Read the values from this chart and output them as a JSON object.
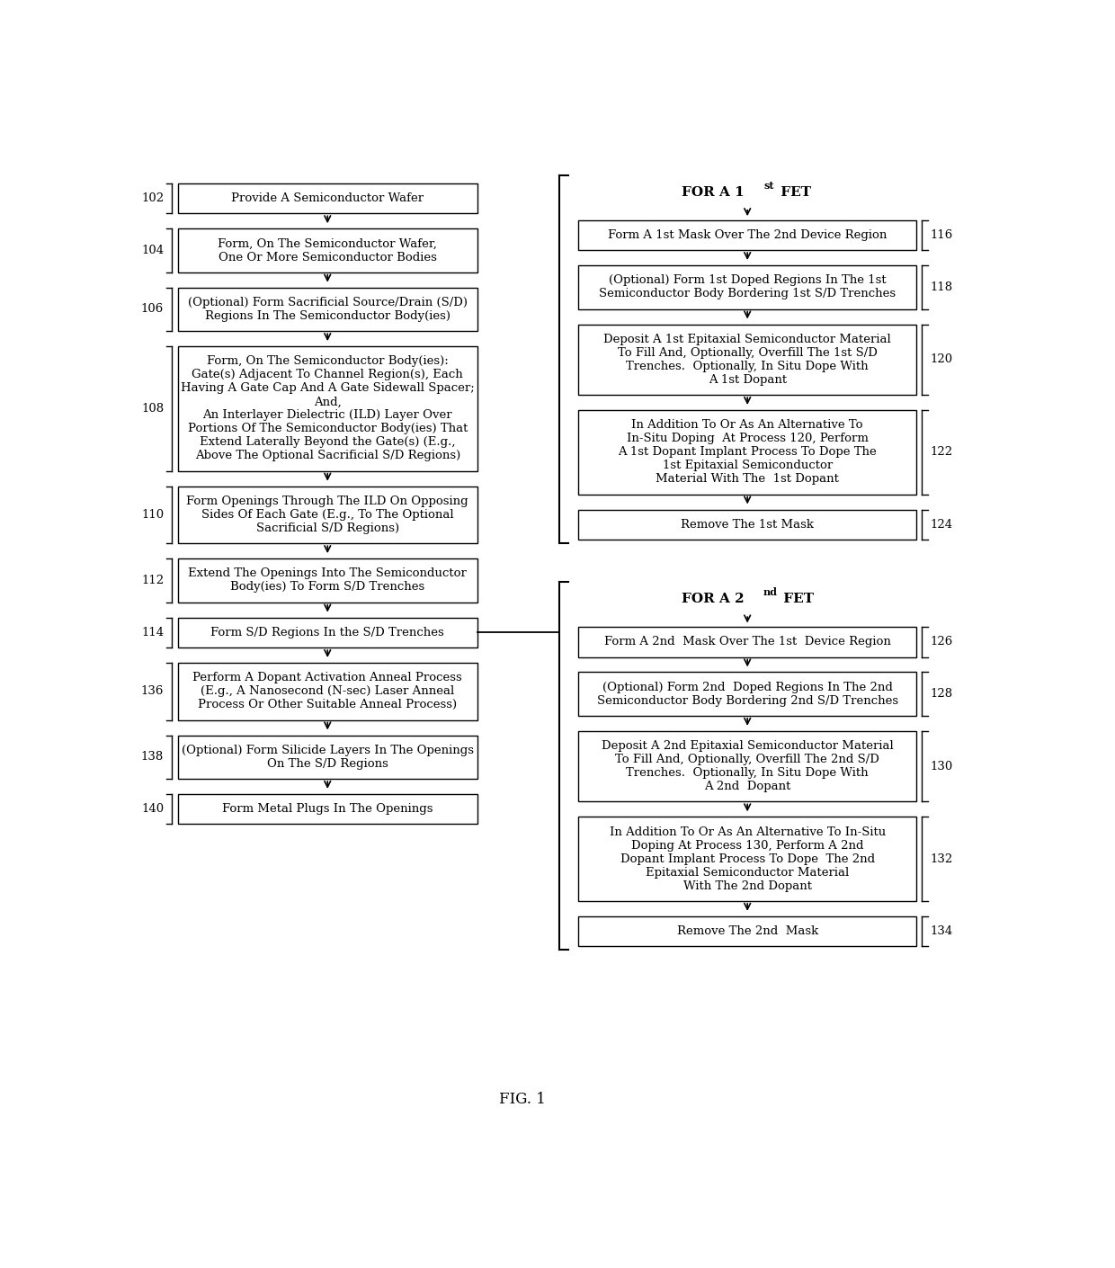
{
  "fig_width": 12.4,
  "fig_height": 14.1,
  "bg_color": "#ffffff",
  "box_color": "#ffffff",
  "box_edge_color": "#000000",
  "text_color": "#000000",
  "arrow_color": "#000000",
  "fig_label": "FIG. 1",
  "left_boxes": [
    {
      "id": "102",
      "label": "Provide A Semiconductor Wafer",
      "nlines": 1
    },
    {
      "id": "104",
      "label": "Form, On The Semiconductor Wafer,\nOne Or More Semiconductor Bodies",
      "nlines": 2
    },
    {
      "id": "106",
      "label": "(Optional) Form Sacrificial Source/Drain (S/D)\nRegions In The Semiconductor Body(ies)",
      "nlines": 2
    },
    {
      "id": "108",
      "label": "Form, On The Semiconductor Body(ies):\nGate(s) Adjacent To Channel Region(s), Each\nHaving A Gate Cap And A Gate Sidewall Spacer;\nAnd,\nAn Interlayer Dielectric (ILD) Layer Over\nPortions Of The Semiconductor Body(ies) That\nExtend Laterally Beyond the Gate(s) (E.g.,\nAbove The Optional Sacrificial S/D Regions)",
      "nlines": 8
    },
    {
      "id": "110",
      "label": "Form Openings Through The ILD On Opposing\nSides Of Each Gate (E.g., To The Optional\nSacrificial S/D Regions)",
      "nlines": 3
    },
    {
      "id": "112",
      "label": "Extend The Openings Into The Semiconductor\nBody(ies) To Form S/D Trenches",
      "nlines": 2
    },
    {
      "id": "114",
      "label": "Form S/D Regions In the S/D Trenches",
      "nlines": 1
    },
    {
      "id": "136",
      "label": "Perform A Dopant Activation Anneal Process\n(E.g., A Nanosecond (N-sec) Laser Anneal\nProcess Or Other Suitable Anneal Process)",
      "nlines": 3
    },
    {
      "id": "138",
      "label": "(Optional) Form Silicide Layers In The Openings\nOn The S/D Regions",
      "nlines": 2
    },
    {
      "id": "140",
      "label": "Form Metal Plugs In The Openings",
      "nlines": 1
    }
  ],
  "right_boxes_1": [
    {
      "id": "116",
      "label": "Form A 1st Mask Over The 2nd Device Region",
      "nlines": 1
    },
    {
      "id": "118",
      "label": "(Optional) Form 1st Doped Regions In The 1st\nSemiconductor Body Bordering 1st S/D Trenches",
      "nlines": 2
    },
    {
      "id": "120",
      "label": "Deposit A 1st Epitaxial Semiconductor Material\nTo Fill And, Optionally, Overfill The 1st S/D\nTrenches.  Optionally, In Situ Dope With\nA 1st Dopant",
      "nlines": 4
    },
    {
      "id": "122",
      "label": "In Addition To Or As An Alternative To\nIn-Situ Doping  At Process 120, Perform\nA 1st Dopant Implant Process To Dope The\n1st Epitaxial Semiconductor\nMaterial With The  1st Dopant",
      "nlines": 5
    },
    {
      "id": "124",
      "label": "Remove The 1st Mask",
      "nlines": 1
    }
  ],
  "right_boxes_2": [
    {
      "id": "126",
      "label": "Form A 2nd  Mask Over The 1st  Device Region",
      "nlines": 1
    },
    {
      "id": "128",
      "label": "(Optional) Form 2nd  Doped Regions In The 2nd\nSemiconductor Body Bordering 2nd S/D Trenches",
      "nlines": 2
    },
    {
      "id": "130",
      "label": "Deposit A 2nd Epitaxial Semiconductor Material\nTo Fill And, Optionally, Overfill The 2nd S/D\nTrenches.  Optionally, In Situ Dope With\nA 2nd  Dopant",
      "nlines": 4
    },
    {
      "id": "132",
      "label": "In Addition To Or As An Alternative To In-Situ\nDoping At Process 130, Perform A 2nd\nDopant Implant Process To Dope  The 2nd\nEpitaxial Semiconductor Material\nWith The 2nd Dopant",
      "nlines": 5
    },
    {
      "id": "134",
      "label": "Remove The 2nd  Mask",
      "nlines": 1
    }
  ]
}
